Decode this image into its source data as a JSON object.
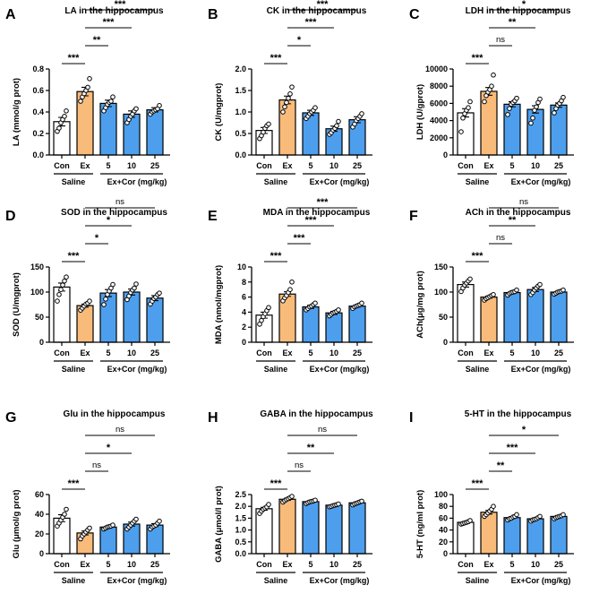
{
  "colors": {
    "saline": "#ffffff",
    "ex": "#f8bb7a",
    "cor": "#4d9fee",
    "stroke": "#000000"
  },
  "chart_data": [
    {
      "type": "bar",
      "letter": "A",
      "title": "LA in the hippocampus",
      "ylabel": "LA (mmol/g prot)",
      "ylim": [
        0,
        0.8
      ],
      "yticks": [
        "0.0",
        "0.2",
        "0.4",
        "0.6",
        "0.8"
      ],
      "ytick_values": [
        0,
        0.2,
        0.4,
        0.6,
        0.8
      ],
      "categories": [
        "Con",
        "Ex",
        "5",
        "10",
        "25"
      ],
      "values": [
        0.31,
        0.59,
        0.48,
        0.38,
        0.42
      ],
      "sem": [
        0.04,
        0.04,
        0.03,
        0.03,
        0.02
      ],
      "points": [
        [
          0.22,
          0.25,
          0.3,
          0.33,
          0.36,
          0.41
        ],
        [
          0.5,
          0.54,
          0.57,
          0.6,
          0.63,
          0.71
        ],
        [
          0.41,
          0.44,
          0.47,
          0.49,
          0.5,
          0.54
        ],
        [
          0.3,
          0.33,
          0.36,
          0.38,
          0.41,
          0.43
        ],
        [
          0.38,
          0.4,
          0.41,
          0.42,
          0.43,
          0.46
        ]
      ],
      "comparisons": [
        {
          "from": 0,
          "to": 1,
          "label": "***"
        },
        {
          "from": 1,
          "to": 2,
          "label": "**"
        },
        {
          "from": 1,
          "to": 3,
          "label": "***"
        },
        {
          "from": 1,
          "to": 4,
          "label": "***"
        }
      ],
      "group_labels": [
        "Saline",
        "Ex+Cor (mg/kg)"
      ]
    },
    {
      "type": "bar",
      "letter": "B",
      "title": "CK in the hippocampus",
      "ylabel": "CK (U/mgprot)",
      "ylim": [
        0,
        2.0
      ],
      "yticks": [
        "0.0",
        "0.5",
        "1.0",
        "1.5",
        "2.0"
      ],
      "ytick_values": [
        0,
        0.5,
        1.0,
        1.5,
        2.0
      ],
      "categories": [
        "Con",
        "Ex",
        "5",
        "10",
        "25"
      ],
      "values": [
        0.57,
        1.28,
        0.98,
        0.61,
        0.82
      ],
      "sem": [
        0.07,
        0.09,
        0.06,
        0.06,
        0.07
      ],
      "points": [
        [
          0.38,
          0.45,
          0.53,
          0.62,
          0.68,
          0.72
        ],
        [
          1.0,
          1.12,
          1.22,
          1.32,
          1.42,
          1.58
        ],
        [
          0.85,
          0.9,
          0.96,
          1.0,
          1.04,
          1.1
        ],
        [
          0.48,
          0.52,
          0.58,
          0.62,
          0.68,
          0.78
        ],
        [
          0.65,
          0.72,
          0.8,
          0.85,
          0.9,
          0.96
        ]
      ],
      "comparisons": [
        {
          "from": 0,
          "to": 1,
          "label": "***"
        },
        {
          "from": 1,
          "to": 2,
          "label": "*"
        },
        {
          "from": 1,
          "to": 3,
          "label": "***"
        },
        {
          "from": 1,
          "to": 4,
          "label": "***"
        }
      ],
      "group_labels": [
        "Saline",
        "Ex+Cor (mg/kg)"
      ]
    },
    {
      "type": "bar",
      "letter": "C",
      "title": "LDH in the hippocampus",
      "ylabel": "LDH (U/gprot)",
      "ylim": [
        0,
        10000
      ],
      "yticks": [
        "0",
        "2000",
        "4000",
        "6000",
        "8000",
        "10000"
      ],
      "ytick_values": [
        0,
        2000,
        4000,
        6000,
        8000,
        10000
      ],
      "categories": [
        "Con",
        "Ex",
        "5",
        "10",
        "25"
      ],
      "values": [
        4900,
        7400,
        5900,
        5300,
        5800
      ],
      "sem": [
        480,
        450,
        300,
        420,
        250
      ],
      "points": [
        [
          2700,
          4300,
          4800,
          5200,
          5500,
          6200
        ],
        [
          6200,
          6900,
          7300,
          7600,
          8000,
          9300
        ],
        [
          4700,
          5400,
          5900,
          6100,
          6300,
          6600
        ],
        [
          3700,
          4300,
          5200,
          5600,
          6100,
          6500
        ],
        [
          4900,
          5400,
          5800,
          6000,
          6300,
          6700
        ]
      ],
      "comparisons": [
        {
          "from": 0,
          "to": 1,
          "label": "***"
        },
        {
          "from": 1,
          "to": 2,
          "label": "ns"
        },
        {
          "from": 1,
          "to": 3,
          "label": "**"
        },
        {
          "from": 1,
          "to": 4,
          "label": "*"
        }
      ],
      "group_labels": [
        "Saline",
        "Ex+Cor (mg/kg)"
      ]
    },
    {
      "type": "bar",
      "letter": "D",
      "title": "SOD in the hippocampus",
      "ylabel": "SOD (U/mgprot)",
      "ylim": [
        0,
        150
      ],
      "yticks": [
        "0",
        "50",
        "100",
        "150"
      ],
      "ytick_values": [
        0,
        50,
        100,
        150
      ],
      "categories": [
        "Con",
        "Ex",
        "5",
        "10",
        "25"
      ],
      "values": [
        110,
        73,
        98,
        100,
        88
      ],
      "sem": [
        8,
        3,
        7,
        6,
        5
      ],
      "points": [
        [
          82,
          95,
          105,
          114,
          122,
          130
        ],
        [
          64,
          68,
          72,
          76,
          78,
          82
        ],
        [
          75,
          86,
          95,
          102,
          108,
          115
        ],
        [
          85,
          92,
          99,
          104,
          108,
          116
        ],
        [
          76,
          82,
          87,
          90,
          95,
          98
        ]
      ],
      "comparisons": [
        {
          "from": 0,
          "to": 1,
          "label": "***"
        },
        {
          "from": 1,
          "to": 2,
          "label": "*"
        },
        {
          "from": 1,
          "to": 3,
          "label": "*"
        },
        {
          "from": 1,
          "to": 4,
          "label": "ns"
        }
      ],
      "group_labels": [
        "Saline",
        "Ex+Cor (mg/kg)"
      ]
    },
    {
      "type": "bar",
      "letter": "E",
      "title": "MDA in the hippocampus",
      "ylabel": "MDA (nmol/mgprot)",
      "ylim": [
        0,
        10
      ],
      "yticks": [
        "0",
        "2",
        "4",
        "6",
        "8",
        "10"
      ],
      "ytick_values": [
        0,
        2,
        4,
        6,
        8,
        10
      ],
      "categories": [
        "Con",
        "Ex",
        "5",
        "10",
        "25"
      ],
      "values": [
        3.6,
        6.4,
        4.7,
        3.9,
        4.8
      ],
      "sem": [
        0.4,
        0.3,
        0.2,
        0.2,
        0.1
      ],
      "points": [
        [
          2.4,
          2.9,
          3.4,
          3.8,
          4.2,
          4.6
        ],
        [
          5.5,
          5.9,
          6.2,
          6.6,
          7.0,
          8.0
        ],
        [
          4.3,
          4.5,
          4.7,
          4.8,
          5.0,
          5.2
        ],
        [
          3.5,
          3.7,
          3.9,
          4.0,
          4.1,
          4.3
        ],
        [
          4.5,
          4.7,
          4.8,
          4.9,
          5.0,
          5.2
        ]
      ],
      "comparisons": [
        {
          "from": 0,
          "to": 1,
          "label": "***"
        },
        {
          "from": 1,
          "to": 2,
          "label": "***"
        },
        {
          "from": 1,
          "to": 3,
          "label": "***"
        },
        {
          "from": 1,
          "to": 4,
          "label": "***"
        }
      ],
      "group_labels": [
        "Saline",
        "Ex+Cor (mg/kg)"
      ]
    },
    {
      "type": "bar",
      "letter": "F",
      "title": "ACh in the hippocampus",
      "ylabel": "ACh(μg/mg prot)",
      "ylim": [
        0,
        150
      ],
      "yticks": [
        "0",
        "50",
        "100",
        "150"
      ],
      "ytick_values": [
        0,
        50,
        100,
        150
      ],
      "categories": [
        "Con",
        "Ex",
        "5",
        "10",
        "25"
      ],
      "values": [
        115,
        90,
        99,
        105,
        100
      ],
      "sem": [
        5,
        2,
        2,
        4,
        2
      ],
      "points": [
        [
          101,
          108,
          114,
          118,
          122,
          126
        ],
        [
          84,
          87,
          89,
          91,
          93,
          95
        ],
        [
          94,
          97,
          99,
          100,
          101,
          104
        ],
        [
          95,
          99,
          104,
          108,
          112,
          115
        ],
        [
          96,
          98,
          100,
          101,
          102,
          104
        ]
      ],
      "comparisons": [
        {
          "from": 0,
          "to": 1,
          "label": "***"
        },
        {
          "from": 1,
          "to": 2,
          "label": "ns"
        },
        {
          "from": 1,
          "to": 3,
          "label": "**"
        },
        {
          "from": 1,
          "to": 4,
          "label": "ns"
        }
      ],
      "group_labels": [
        "Saline",
        "Ex+Cor (mg/kg)"
      ]
    },
    {
      "type": "bar",
      "letter": "G",
      "title": "Glu in the hippocampus",
      "ylabel": "Glu (μmol/g prot)",
      "ylim": [
        0,
        60
      ],
      "yticks": [
        "0",
        "20",
        "40",
        "60"
      ],
      "ytick_values": [
        0,
        20,
        40,
        60
      ],
      "categories": [
        "Con",
        "Ex",
        "5",
        "10",
        "25"
      ],
      "values": [
        36,
        21,
        27,
        30,
        29
      ],
      "sem": [
        3.5,
        2,
        1,
        2,
        1.5
      ],
      "points": [
        [
          28,
          31,
          34,
          37,
          40,
          45
        ],
        [
          15,
          18,
          20,
          22,
          24,
          26
        ],
        [
          25,
          26,
          27,
          27.5,
          28,
          29
        ],
        [
          25,
          27,
          29,
          31,
          33,
          35
        ],
        [
          25,
          27,
          28,
          29,
          31,
          33
        ]
      ],
      "comparisons": [
        {
          "from": 0,
          "to": 1,
          "label": "***"
        },
        {
          "from": 1,
          "to": 2,
          "label": "ns"
        },
        {
          "from": 1,
          "to": 3,
          "label": "*"
        },
        {
          "from": 1,
          "to": 4,
          "label": "ns"
        }
      ],
      "group_labels": [
        "Saline",
        "Ex+Cor (mg/kg)"
      ]
    },
    {
      "type": "bar",
      "letter": "H",
      "title": "GABA in the hippocampus",
      "ylabel": "GABA (μmol/l prot)",
      "ylim": [
        0,
        2.5
      ],
      "yticks": [
        "0.0",
        "0.5",
        "1.0",
        "1.5",
        "2.0",
        "2.5"
      ],
      "ytick_values": [
        0,
        0.5,
        1.0,
        1.5,
        2.0,
        2.5
      ],
      "categories": [
        "Con",
        "Ex",
        "5",
        "10",
        "25"
      ],
      "values": [
        1.9,
        2.3,
        2.2,
        2.05,
        2.15
      ],
      "sem": [
        0.06,
        0.04,
        0.03,
        0.03,
        0.04
      ],
      "points": [
        [
          1.7,
          1.8,
          1.88,
          1.93,
          1.98,
          2.08
        ],
        [
          2.18,
          2.24,
          2.29,
          2.33,
          2.37,
          2.42
        ],
        [
          2.12,
          2.16,
          2.19,
          2.21,
          2.23,
          2.26
        ],
        [
          1.98,
          2.0,
          2.03,
          2.05,
          2.07,
          2.1
        ],
        [
          2.06,
          2.1,
          2.13,
          2.16,
          2.19,
          2.22
        ]
      ],
      "comparisons": [
        {
          "from": 0,
          "to": 1,
          "label": "***"
        },
        {
          "from": 1,
          "to": 2,
          "label": "ns"
        },
        {
          "from": 1,
          "to": 3,
          "label": "**"
        },
        {
          "from": 1,
          "to": 4,
          "label": "ns"
        }
      ],
      "group_labels": [
        "Saline",
        "Ex+Cor (mg/kg)"
      ]
    },
    {
      "type": "bar",
      "letter": "I",
      "title": "5-HT in the hippocampus",
      "ylabel": "5-HT (ng/ml prot)",
      "ylim": [
        0,
        100
      ],
      "yticks": [
        "0",
        "20",
        "40",
        "60",
        "80",
        "100"
      ],
      "ytick_values": [
        0,
        20,
        40,
        60,
        80,
        100
      ],
      "categories": [
        "Con",
        "Ex",
        "5",
        "10",
        "25"
      ],
      "values": [
        53,
        70,
        61,
        59,
        63
      ],
      "sem": [
        1.5,
        3,
        1.5,
        1.5,
        1.5
      ],
      "points": [
        [
          50,
          51,
          52,
          53,
          54,
          56
        ],
        [
          63,
          66,
          69,
          72,
          75,
          80
        ],
        [
          57,
          59,
          60,
          62,
          63,
          66
        ],
        [
          55,
          57,
          58,
          59,
          61,
          63
        ],
        [
          59,
          61,
          62,
          63,
          64,
          66
        ]
      ],
      "comparisons": [
        {
          "from": 0,
          "to": 1,
          "label": "***"
        },
        {
          "from": 1,
          "to": 2,
          "label": "**"
        },
        {
          "from": 1,
          "to": 3,
          "label": "***"
        },
        {
          "from": 1,
          "to": 4,
          "label": "*"
        }
      ],
      "group_labels": [
        "Saline",
        "Ex+Cor (mg/kg)"
      ]
    }
  ]
}
